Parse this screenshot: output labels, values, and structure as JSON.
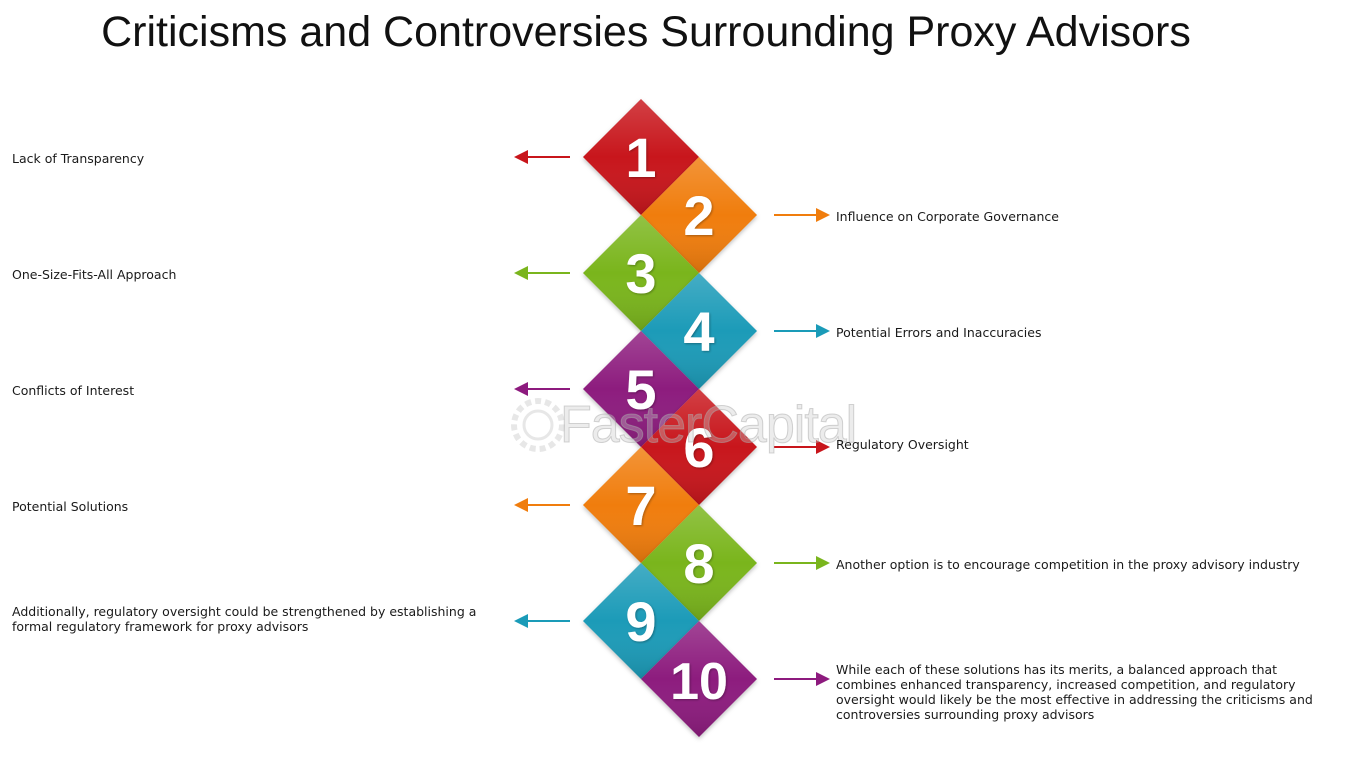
{
  "title": "Criticisms and Controversies Surrounding Proxy Advisors",
  "watermark": "FasterCapital",
  "steps": [
    {
      "number": "1",
      "color": "#c8151b",
      "side": "left",
      "label": "Lack of Transparency"
    },
    {
      "number": "2",
      "color": "#f07d0d",
      "side": "right",
      "label": "Influence on Corporate Governance"
    },
    {
      "number": "3",
      "color": "#7ab51d",
      "side": "left",
      "label": "One-Size-Fits-All Approach"
    },
    {
      "number": "4",
      "color": "#1a9bb8",
      "side": "right",
      "label": "Potential Errors and Inaccuracies"
    },
    {
      "number": "5",
      "color": "#8d1a7e",
      "side": "left",
      "label": "Conflicts of Interest"
    },
    {
      "number": "6",
      "color": "#c8151b",
      "side": "right",
      "label": "Regulatory Oversight"
    },
    {
      "number": "7",
      "color": "#f07d0d",
      "side": "left",
      "label": "Potential Solutions"
    },
    {
      "number": "8",
      "color": "#7ab51d",
      "side": "right",
      "label": "Another option is to encourage competition in the proxy advisory industry"
    },
    {
      "number": "9",
      "color": "#1a9bb8",
      "side": "left",
      "label": "Additionally, regulatory oversight could be strengthened by establishing a formal regulatory framework for proxy advisors"
    },
    {
      "number": "10",
      "color": "#8d1a7e",
      "side": "right",
      "label": "While each of these solutions has its merits, a balanced approach that combines enhanced transparency, increased competition, and regulatory oversight would likely be the most effective in addressing the criticisms and controversies surrounding proxy advisors"
    }
  ]
}
